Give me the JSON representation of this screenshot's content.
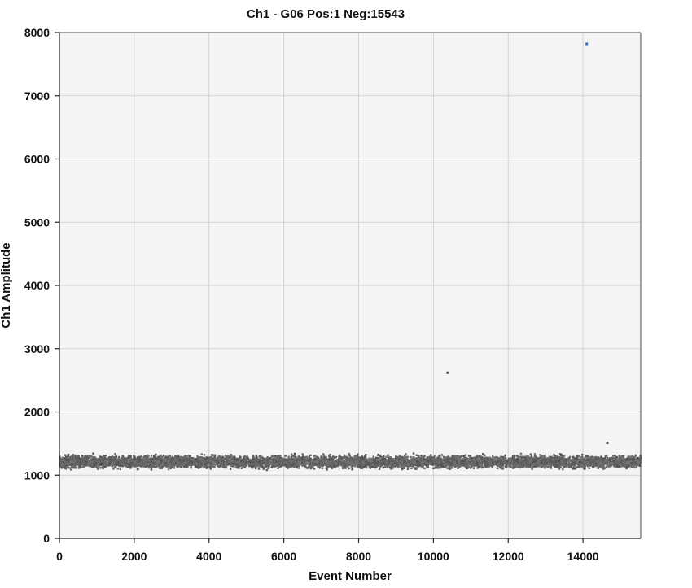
{
  "chart_data": {
    "type": "scatter",
    "title": "Ch1 - G06 Pos:1 Neg:15543",
    "xlabel": "Event Number",
    "ylabel": "Ch1 Amplitude",
    "xlim": [
      0,
      15543
    ],
    "ylim": [
      0,
      8000
    ],
    "x_ticks": [
      0,
      2000,
      4000,
      6000,
      8000,
      10000,
      12000,
      14000
    ],
    "y_ticks": [
      0,
      1000,
      2000,
      3000,
      4000,
      5000,
      6000,
      7000,
      8000
    ],
    "grid": true,
    "legend": "none",
    "colors": {
      "positive": "#1f6fd1",
      "negative": "#5a5a5a",
      "plot_bg": "#f4f4f4",
      "grid": "#d2d2d2"
    },
    "series": [
      {
        "class": "positive",
        "points": [
          [
            14100,
            7820
          ]
        ]
      },
      {
        "class": "negative_outliers",
        "points": [
          [
            10380,
            2620
          ],
          [
            14650,
            1510
          ]
        ]
      },
      {
        "class": "negative",
        "count": 15543,
        "center": 1210,
        "band": [
          1080,
          1380
        ]
      }
    ]
  }
}
